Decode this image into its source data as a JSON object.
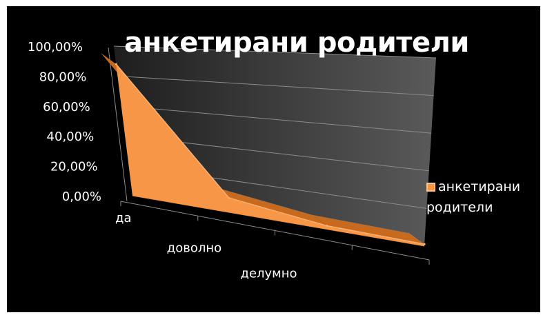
{
  "chart_data": {
    "type": "area",
    "title": "анкетирани родители",
    "categories": [
      "да",
      "доволно",
      "делумно",
      ""
    ],
    "series": [
      {
        "name": "анкетирани родители",
        "values": [
          0.88,
          0.09,
          0.02,
          0.01
        ],
        "color": "#f79646"
      }
    ],
    "y_tick_labels": [
      "0,00%",
      "20,00%",
      "40,00%",
      "60,00%",
      "80,00%",
      "100,00%"
    ],
    "ylim": [
      0,
      1
    ],
    "grid": true,
    "legend": "right",
    "three_d": true
  }
}
